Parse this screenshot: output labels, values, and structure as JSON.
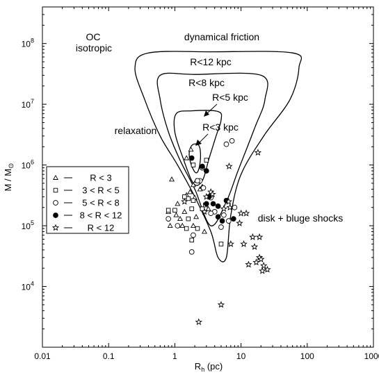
{
  "chart_data": {
    "type": "scatter",
    "xlabel_main": "R",
    "xlabel_sub": "h",
    "xlabel_unit": " (pc)",
    "ylabel_main": "M / M",
    "ylabel_sub": "⊙",
    "xscale": "log",
    "yscale": "log",
    "xlim": [
      0.01,
      1000
    ],
    "ylim": [
      1000,
      400000000
    ],
    "x_ticks": [
      {
        "v": 0.01,
        "label": "0.01"
      },
      {
        "v": 0.1,
        "label": "0.1"
      },
      {
        "v": 1,
        "label": "1"
      },
      {
        "v": 10,
        "label": "10"
      },
      {
        "v": 100,
        "label": "100"
      },
      {
        "v": 1000,
        "label": "1000"
      }
    ],
    "y_ticks": [
      {
        "v": 10000,
        "base": "10",
        "exp": "4"
      },
      {
        "v": 100000,
        "base": "10",
        "exp": "5"
      },
      {
        "v": 1000000,
        "base": "10",
        "exp": "6"
      },
      {
        "v": 10000000,
        "base": "10",
        "exp": "7"
      },
      {
        "v": 100000000,
        "base": "10",
        "exp": "8"
      }
    ],
    "annotations": {
      "oc": "OC",
      "isotropic": "isotropic",
      "dynamical_friction": "dynamical friction",
      "relaxation": "relaxation",
      "disk_shocks": "disk + bluge shocks",
      "r12": "R<12 kpc",
      "r8": "R<8 kpc",
      "r5": "R<5 kpc",
      "r3": "R<3 kpc"
    },
    "contours": [
      {
        "name": "R<12 kpc",
        "points": [
          [
            2.0,
            300000.0
          ],
          [
            1.1,
            1000000.0
          ],
          [
            0.6,
            3000000.0
          ],
          [
            0.35,
            12000000.0
          ],
          [
            0.25,
            40000000.0
          ],
          [
            0.4,
            70000000.0
          ],
          [
            3.5,
            73000000.0
          ],
          [
            60,
            70000000.0
          ],
          [
            75,
            40000000.0
          ],
          [
            55,
            12000000.0
          ],
          [
            22,
            3000000.0
          ],
          [
            10,
            700000.0
          ],
          [
            7.0,
            150000.0
          ],
          [
            6.0,
            30000.0
          ],
          [
            4.5,
            30000.0
          ],
          [
            3.5,
            80000.0
          ],
          [
            2.0,
            300000.0
          ]
        ]
      },
      {
        "name": "R<8 kpc",
        "points": [
          [
            2.0,
            400000.0
          ],
          [
            1.2,
            1200000.0
          ],
          [
            0.8,
            3500000.0
          ],
          [
            0.6,
            12000000.0
          ],
          [
            0.6,
            30000000.0
          ],
          [
            2.0,
            31000000.0
          ],
          [
            20,
            30000000.0
          ],
          [
            23,
            12000000.0
          ],
          [
            16,
            4000000.0
          ],
          [
            9,
            800000.0
          ],
          [
            6,
            250000.0
          ],
          [
            3.5,
            100000.0
          ],
          [
            2.0,
            400000.0
          ]
        ]
      },
      {
        "name": "R<5 kpc",
        "points": [
          [
            1.9,
            500000.0
          ],
          [
            1.3,
            1400000.0
          ],
          [
            1.0,
            3500000.0
          ],
          [
            1.05,
            7000000.0
          ],
          [
            1.8,
            7800000.0
          ],
          [
            4.5,
            7600000.0
          ],
          [
            5.0,
            5500000.0
          ],
          [
            4.2,
            3000000.0
          ],
          [
            3.3,
            1300000.0
          ],
          [
            2.6,
            550000.0
          ],
          [
            1.9,
            500000.0
          ]
        ]
      },
      {
        "name": "R<3 kpc",
        "points": [
          [
            2.05,
            750000.0
          ],
          [
            1.75,
            1050000.0
          ],
          [
            1.65,
            1600000.0
          ],
          [
            1.85,
            2150000.0
          ],
          [
            2.3,
            2100000.0
          ],
          [
            2.45,
            1400000.0
          ],
          [
            2.3,
            850000.0
          ],
          [
            2.05,
            750000.0
          ]
        ]
      }
    ],
    "series": [
      {
        "name": "R < 3",
        "marker": "triangle",
        "points": [
          [
            0.9,
            580000.0
          ],
          [
            0.8,
            170000.0
          ],
          [
            1.1,
            230000.0
          ],
          [
            1.2,
            130000.0
          ],
          [
            1.3,
            100000.0
          ],
          [
            0.85,
            100000.0
          ],
          [
            1.05,
            150000.0
          ],
          [
            1.4,
            170000.0
          ],
          [
            1.5,
            320000.0
          ],
          [
            1.7,
            360000.0
          ],
          [
            1.9,
            470000.0
          ],
          [
            2.0,
            290000.0
          ],
          [
            2.1,
            550000.0
          ],
          [
            2.4,
            400000.0
          ],
          [
            2.6,
            440000.0
          ],
          [
            2.1,
            140000.0
          ],
          [
            1.9,
            100000.0
          ],
          [
            3.2,
            190000.0
          ],
          [
            2.8,
            80000.0
          ],
          [
            1.75,
            1800000.0
          ],
          [
            1.5,
            1300000.0
          ]
        ]
      },
      {
        "name": "3 < R < 5",
        "marker": "square",
        "points": [
          [
            0.8,
            180000.0
          ],
          [
            1.0,
            180000.0
          ],
          [
            1.6,
            280000.0
          ],
          [
            1.9,
            260000.0
          ],
          [
            1.6,
            130000.0
          ],
          [
            1.5,
            90000.0
          ],
          [
            2.2,
            90000.0
          ],
          [
            1.8,
            58000.0
          ],
          [
            2.6,
            190000.0
          ],
          [
            2.9,
            220000.0
          ],
          [
            3.0,
            1200000.0
          ],
          [
            1.9,
            1000000.0
          ],
          [
            1.4,
            300000.0
          ],
          [
            1.8,
            190000.0
          ],
          [
            5.0,
            50000.0
          ]
        ]
      },
      {
        "name": "5 < R < 8",
        "marker": "circle",
        "points": [
          [
            0.8,
            130000.0
          ],
          [
            1.1,
            100000.0
          ],
          [
            1.9,
            70000.0
          ],
          [
            1.8,
            37000.0
          ],
          [
            2.4,
            550000.0
          ],
          [
            2.7,
            420000.0
          ],
          [
            3.5,
            290000.0
          ],
          [
            4.0,
            170000.0
          ],
          [
            5.5,
            150000.0
          ],
          [
            6.5,
            120000.0
          ],
          [
            7.3,
            2500000.0
          ],
          [
            8.0,
            200000.0
          ],
          [
            6.0,
            2200000.0
          ],
          [
            2.6,
            900000.0
          ],
          [
            2.2,
            550000.0
          ],
          [
            3.5,
            160000.0
          ],
          [
            5.0,
            95000.0
          ]
        ]
      },
      {
        "name": "8 < R < 12",
        "marker": "filled",
        "points": [
          [
            1.8,
            1300000.0
          ],
          [
            2.6,
            950000.0
          ],
          [
            3.0,
            800000.0
          ],
          [
            3.3,
            300000.0
          ],
          [
            3.8,
            230000.0
          ],
          [
            4.5,
            210000.0
          ],
          [
            4.5,
            140000.0
          ],
          [
            5.2,
            120000.0
          ],
          [
            6.0,
            260000.0
          ],
          [
            7.7,
            130000.0
          ],
          [
            3.0,
            230000.0
          ]
        ]
      },
      {
        "name": "R < 12",
        "marker": "star",
        "points": [
          [
            6.6,
            950000.0
          ],
          [
            18,
            1600000.0
          ],
          [
            3.5,
            360000.0
          ],
          [
            3.7,
            330000.0
          ],
          [
            6.5,
            250000.0
          ],
          [
            6.8,
            200000.0
          ],
          [
            10,
            160000.0
          ],
          [
            12,
            160000.0
          ],
          [
            9.5,
            110000.0
          ],
          [
            11,
            50000.0
          ],
          [
            15,
            65000.0
          ],
          [
            16,
            45000.0
          ],
          [
            19,
            65000.0
          ],
          [
            17,
            25000.0
          ],
          [
            19,
            30000.0
          ],
          [
            20,
            28000.0
          ],
          [
            22,
            22000.0
          ],
          [
            25,
            19000.0
          ],
          [
            21,
            18000.0
          ],
          [
            13,
            23000.0
          ],
          [
            7.0,
            50000.0
          ],
          [
            5.0,
            5000.0
          ],
          [
            2.3,
            2600.0
          ],
          [
            2.8,
            170000.0
          ],
          [
            3.0,
            300000.0
          ],
          [
            5.5,
            190000.0
          ],
          [
            1.4,
            250000.0
          ]
        ]
      }
    ]
  }
}
